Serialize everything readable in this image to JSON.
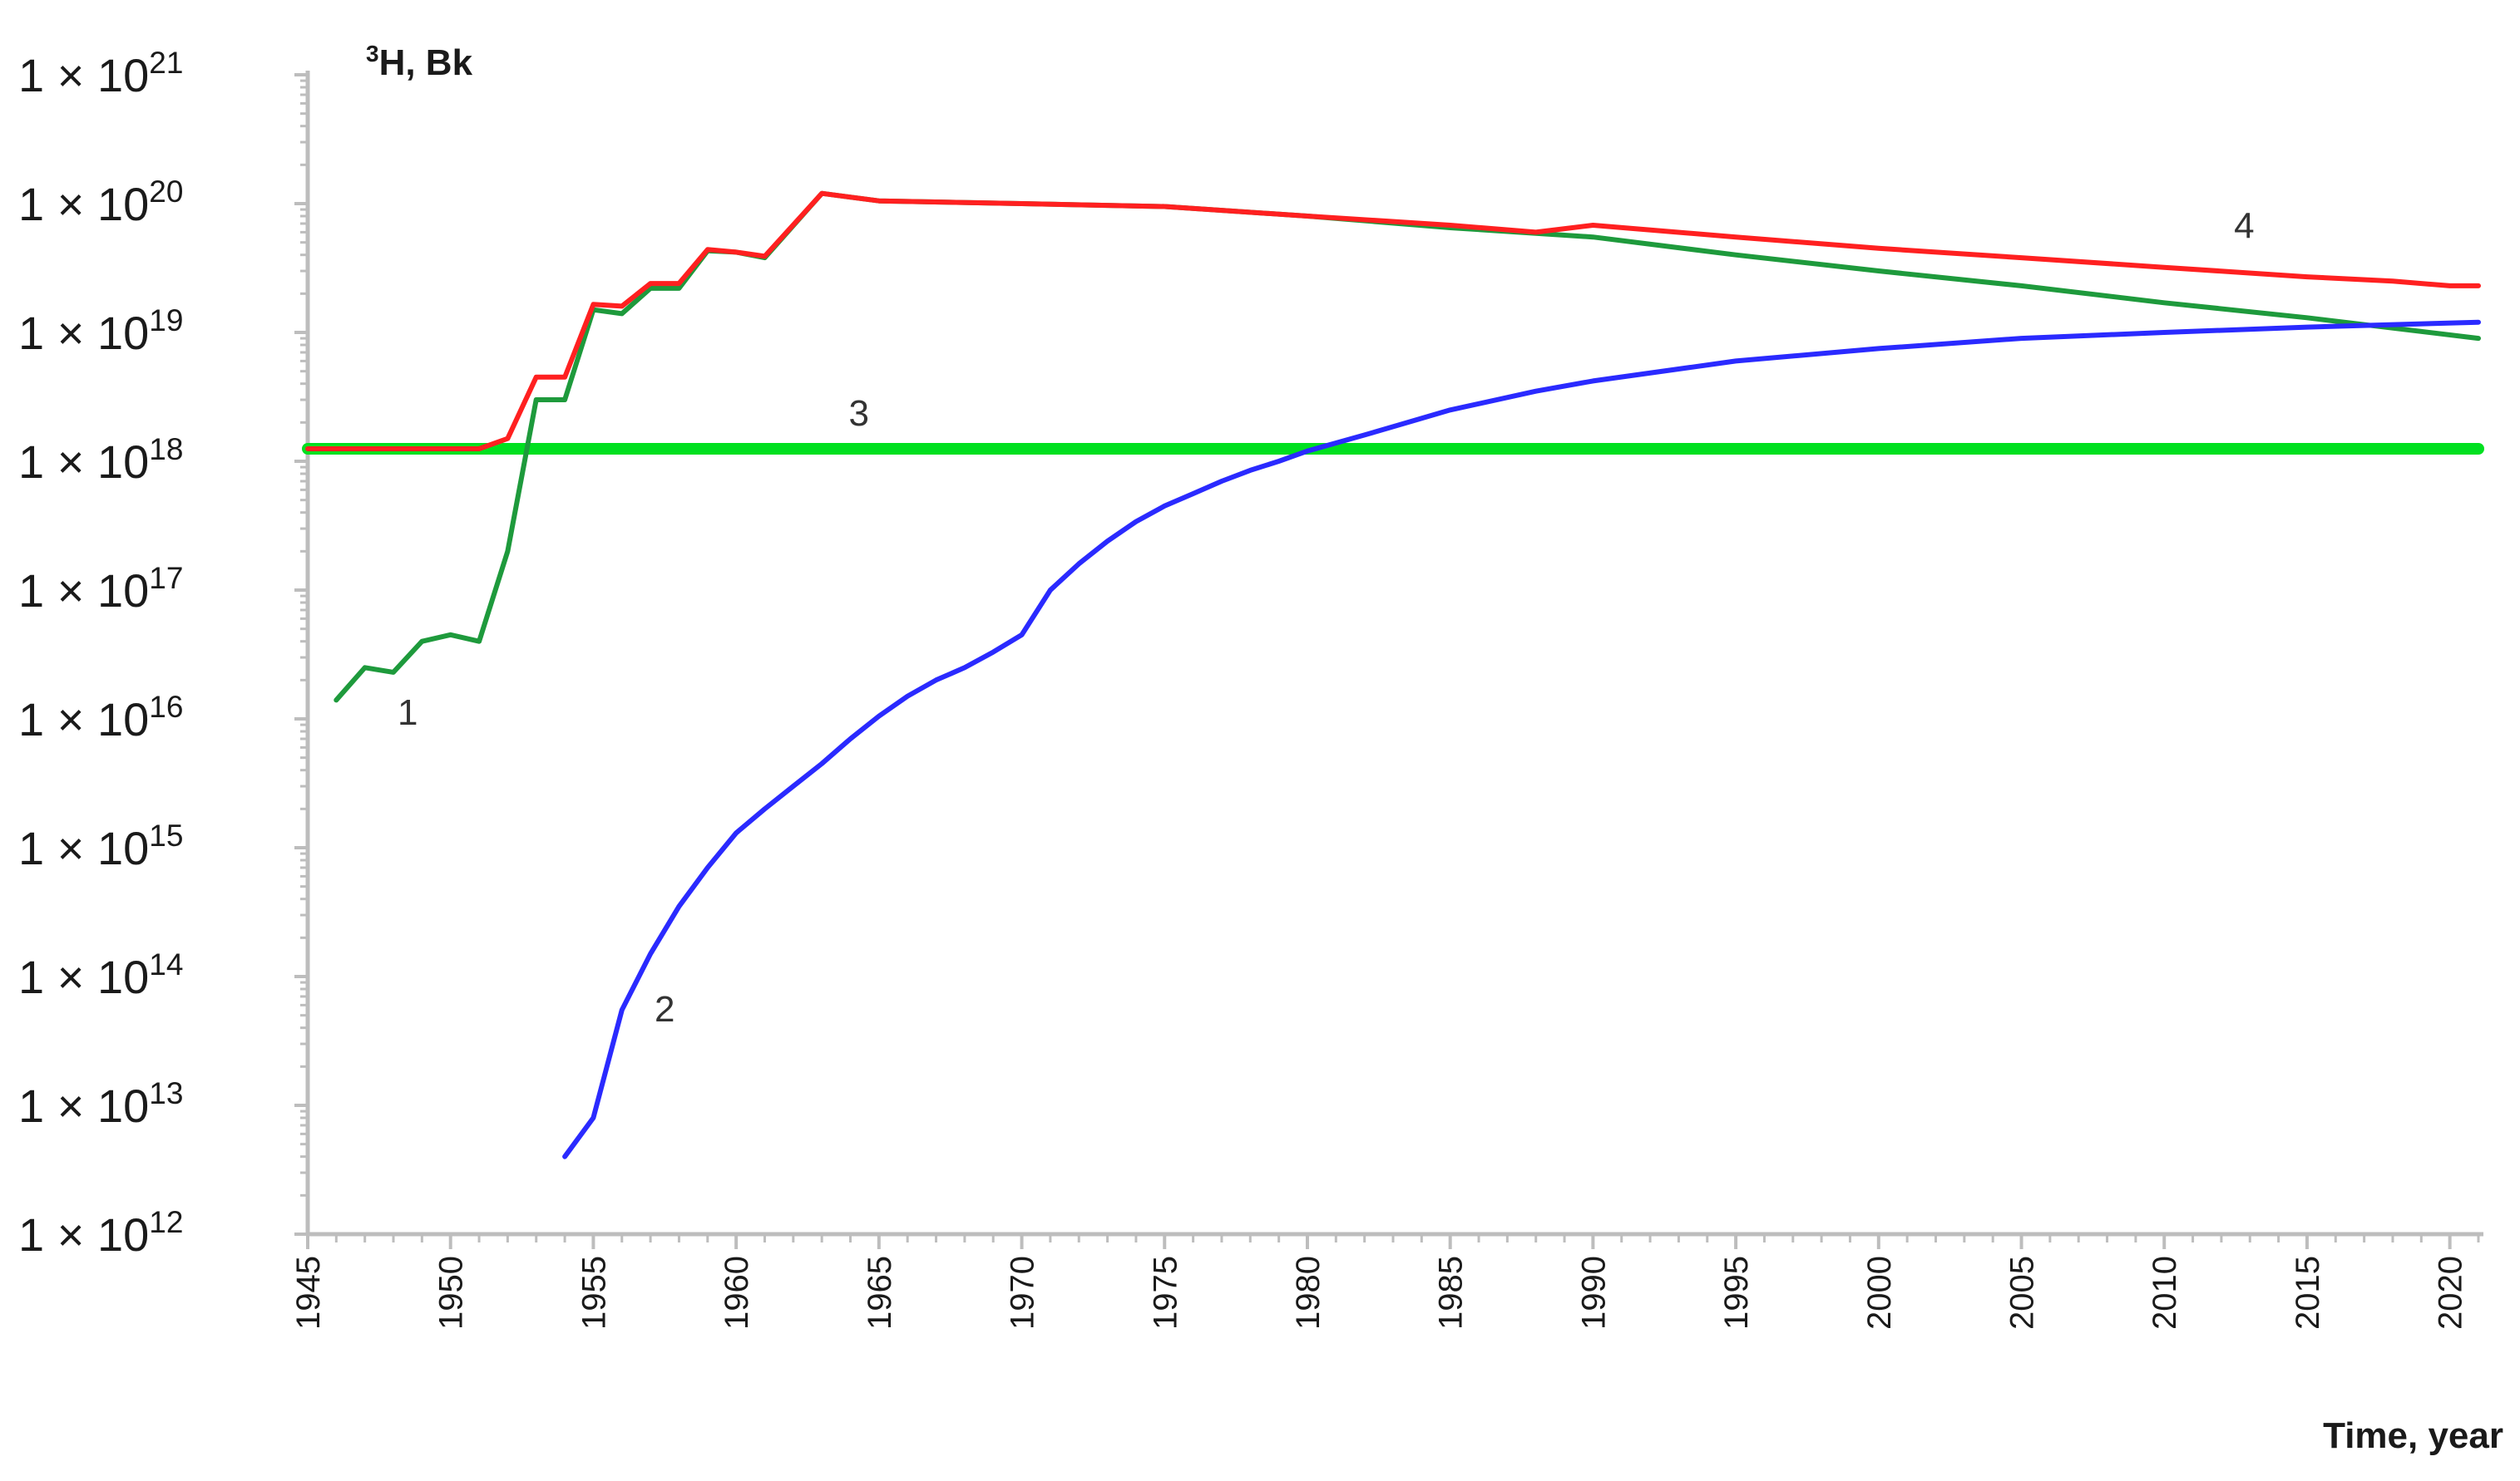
{
  "chart_data": {
    "type": "line",
    "title": "",
    "ylabel": {
      "sup": "3",
      "text": "H, Bk"
    },
    "xlabel": "Time, year",
    "yscale": "log",
    "ylim": [
      1000000000000.0,
      1e+21
    ],
    "xlim": [
      1945,
      2021
    ],
    "y_ticks": [
      {
        "exp": 21,
        "mantissa": "1 × 10"
      },
      {
        "exp": 20,
        "mantissa": "1 × 10"
      },
      {
        "exp": 19,
        "mantissa": "1 × 10"
      },
      {
        "exp": 18,
        "mantissa": "1 × 10"
      },
      {
        "exp": 17,
        "mantissa": "1 × 10"
      },
      {
        "exp": 16,
        "mantissa": "1 × 10"
      },
      {
        "exp": 15,
        "mantissa": "1 × 10"
      },
      {
        "exp": 14,
        "mantissa": "1 × 10"
      },
      {
        "exp": 13,
        "mantissa": "1 × 10"
      },
      {
        "exp": 12,
        "mantissa": "1 × 10"
      }
    ],
    "x_ticks": [
      1945,
      1950,
      1955,
      1960,
      1965,
      1970,
      1975,
      1980,
      1985,
      1990,
      1995,
      2000,
      2005,
      2010,
      2015,
      2020
    ],
    "grid": false,
    "legend": "none",
    "series": [
      {
        "label": "1",
        "color": "#1e9a3c",
        "x": [
          1946,
          1947,
          1948,
          1949,
          1950,
          1951,
          1952,
          1953,
          1954,
          1955,
          1956,
          1957,
          1958,
          1959,
          1960,
          1961,
          1963,
          1965,
          1970,
          1975,
          1980,
          1985,
          1990,
          1995,
          2000,
          2005,
          2010,
          2015,
          2021
        ],
        "y": [
          1.4e+16,
          2.5e+16,
          2.3e+16,
          4e+16,
          4.5e+16,
          4e+16,
          2e+17,
          3e+18,
          3e+18,
          1.5e+19,
          1.4e+19,
          2.2e+19,
          2.2e+19,
          4.3e+19,
          4.2e+19,
          3.8e+19,
          1.2e+20,
          1.05e+20,
          1e+20,
          9.5e+19,
          8e+19,
          6.5e+19,
          5.5e+19,
          4e+19,
          3e+19,
          2.3e+19,
          1.7e+19,
          1.3e+19,
          9e+18
        ]
      },
      {
        "label": "2",
        "color": "#2a2aff",
        "x": [
          1954,
          1955,
          1956,
          1957,
          1958,
          1959,
          1960,
          1961,
          1962,
          1963,
          1964,
          1965,
          1966,
          1967,
          1968,
          1969,
          1970,
          1971,
          1972,
          1973,
          1974,
          1975,
          1976,
          1977,
          1978,
          1979,
          1980,
          1982,
          1985,
          1988,
          1990,
          1995,
          2000,
          2005,
          2010,
          2015,
          2021
        ],
        "y": [
          4000000000000.0,
          8000000000000.0,
          55000000000000.0,
          150000000000000.0,
          350000000000000.0,
          700000000000000.0,
          1300000000000000.0,
          2000000000000000.0,
          3000000000000000.0,
          4500000000000000.0,
          7000000000000000.0,
          1.05e+16,
          1.5e+16,
          2e+16,
          2.5e+16,
          3.3e+16,
          4.5e+16,
          1e+17,
          1.6e+17,
          2.4e+17,
          3.4e+17,
          4.5e+17,
          5.6e+17,
          7e+17,
          8.5e+17,
          1e+18,
          1.2e+18,
          1.6e+18,
          2.5e+18,
          3.5e+18,
          4.2e+18,
          6e+18,
          7.5e+18,
          9e+18,
          1e+19,
          1.1e+19,
          1.2e+19
        ]
      },
      {
        "label": "3",
        "color": "#00e020",
        "x": [
          1945,
          2021
        ],
        "y": [
          1.25e+18,
          1.25e+18
        ]
      },
      {
        "label": "4",
        "color": "#ff2020",
        "x": [
          1945,
          1951,
          1952,
          1953,
          1954,
          1955,
          1956,
          1957,
          1958,
          1959,
          1960,
          1961,
          1963,
          1965,
          1970,
          1975,
          1980,
          1985,
          1988,
          1990,
          1995,
          2000,
          2005,
          2010,
          2015,
          2018,
          2020,
          2021
        ],
        "y": [
          1.25e+18,
          1.25e+18,
          1.5e+18,
          4.5e+18,
          4.5e+18,
          1.65e+19,
          1.6e+19,
          2.4e+19,
          2.4e+19,
          4.4e+19,
          4.2e+19,
          3.9e+19,
          1.2e+20,
          1.05e+20,
          1e+20,
          9.5e+19,
          8e+19,
          6.8e+19,
          6e+19,
          6.8e+19,
          5.5e+19,
          4.5e+19,
          3.8e+19,
          3.2e+19,
          2.7e+19,
          2.5e+19,
          2.3e+19,
          2.3e+19
        ]
      }
    ],
    "annotations": [
      {
        "text": "1",
        "series": "1",
        "x": 1948.5,
        "y": 9000000000000000.0
      },
      {
        "text": "2",
        "series": "2",
        "x": 1957.5,
        "y": 45000000000000.0
      },
      {
        "text": "3",
        "series": "3",
        "x": 1964.3,
        "y": 1.9e+18
      },
      {
        "text": "4",
        "series": "4",
        "x": 2012.8,
        "y": 5.4e+19
      }
    ]
  }
}
